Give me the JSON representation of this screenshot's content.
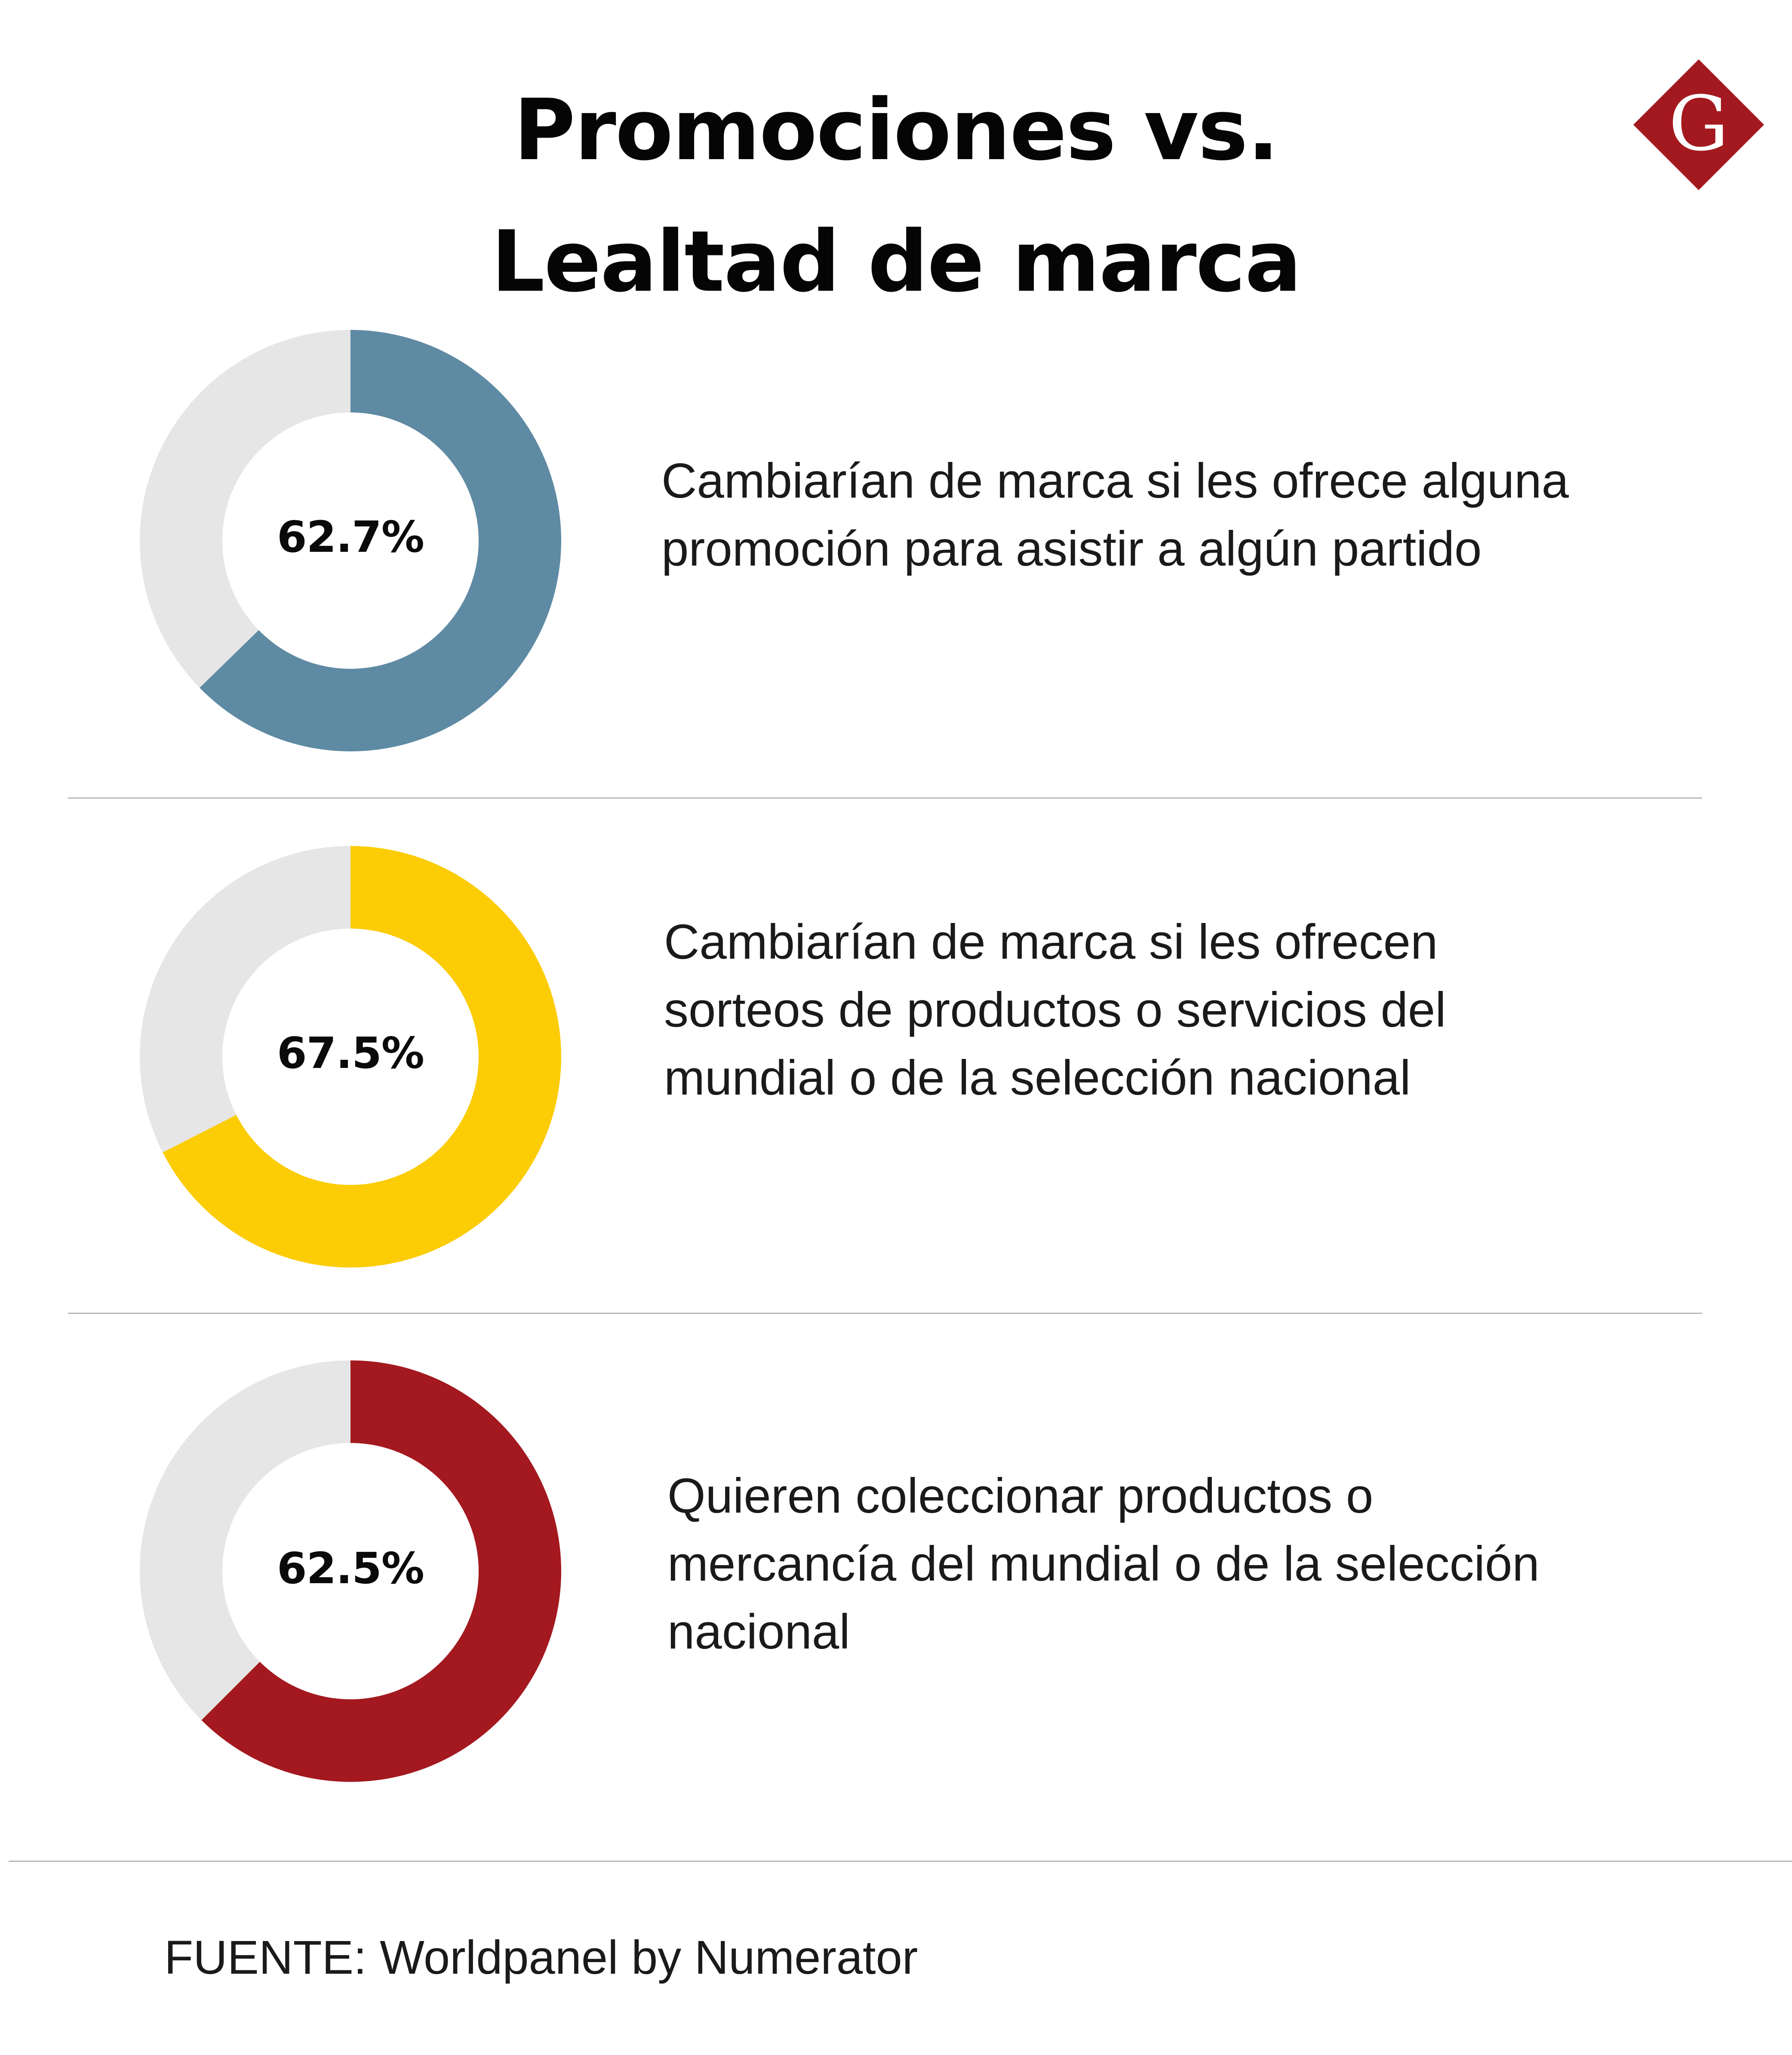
{
  "title_line1": "Promociones vs.",
  "title_line2": "Lealtad de marca",
  "logo": {
    "letter": "G",
    "color": "#a3191f",
    "icon": "publisher-logo-icon"
  },
  "colors": {
    "remainder": "#e6e6e6",
    "divider": "#b8b8b8",
    "series": [
      "#5f8aa3",
      "#fccc05",
      "#a3191f"
    ]
  },
  "chart_data": [
    {
      "type": "pie",
      "style": "donut",
      "value": 62.7,
      "total": 100,
      "label": "62.7%",
      "description": "Cambiarían de marca si les ofrece alguna promoción para asistir a algún partido",
      "color": "#5f8aa3"
    },
    {
      "type": "pie",
      "style": "donut",
      "value": 67.5,
      "total": 100,
      "label": "67.5%",
      "description": "Cambiarían de marca si les ofrecen sorteos de productos o servicios del mundial o de la selección nacional",
      "color": "#fccc05"
    },
    {
      "type": "pie",
      "style": "donut",
      "value": 62.5,
      "total": 100,
      "label": "62.5%",
      "description": "Quieren coleccionar productos o mercancía del mundial o de la selección nacional",
      "color": "#a3191f"
    }
  ],
  "source": "FUENTE: Worldpanel by Numerator"
}
